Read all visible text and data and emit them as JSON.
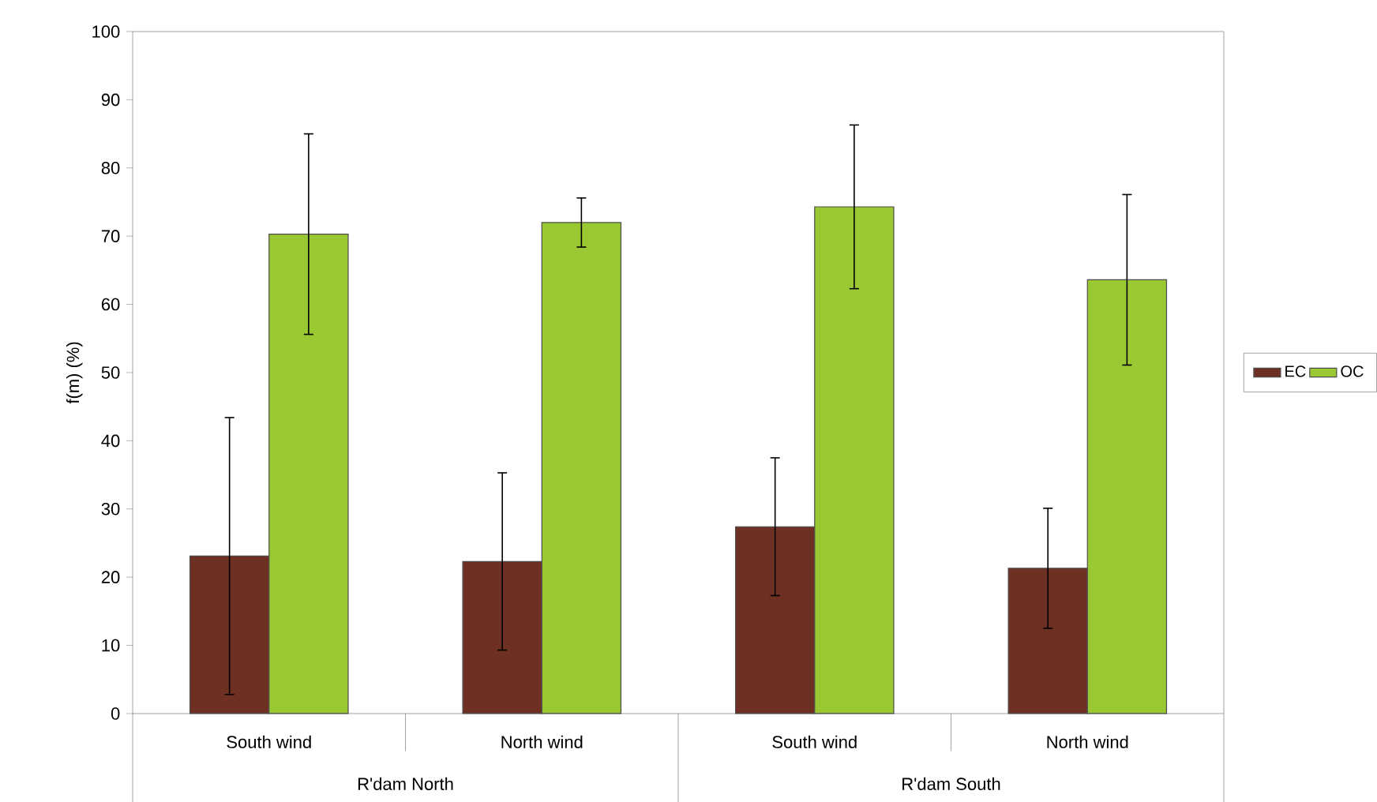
{
  "chart_data": {
    "type": "bar",
    "ylabel": "f(m) (%)",
    "categories": [
      "South wind",
      "North wind",
      "South wind",
      "North wind"
    ],
    "series": [
      {
        "name": "EC",
        "color": "#6e3022",
        "values": [
          23.1,
          22.3,
          27.4,
          21.3
        ],
        "errors": [
          20.3,
          13.0,
          10.1,
          8.8
        ]
      },
      {
        "name": "OC",
        "color": "#9ac833",
        "values": [
          70.3,
          72.0,
          74.3,
          63.6
        ],
        "errors": [
          14.7,
          3.6,
          12.0,
          12.5
        ]
      }
    ],
    "annotations": [
      "R'dam North",
      "R'dam South"
    ],
    "ylim": [
      0,
      100
    ],
    "yticks": [
      0,
      10,
      20,
      30,
      40,
      50,
      60,
      70,
      80,
      90,
      100
    ],
    "grid": false,
    "legend": "right"
  }
}
